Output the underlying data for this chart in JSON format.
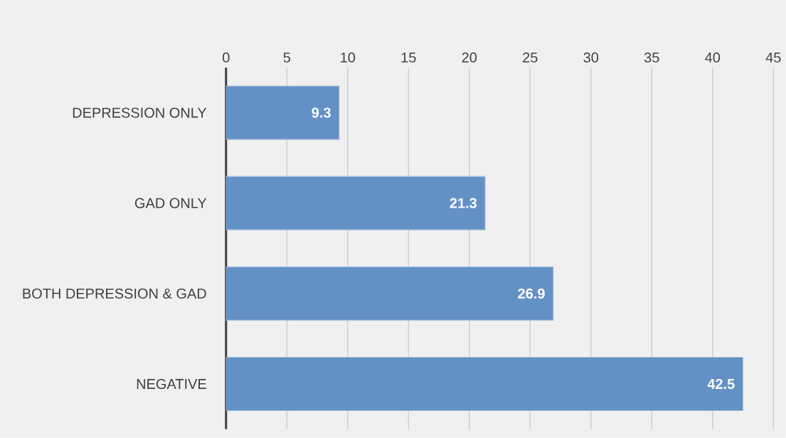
{
  "chart_data": {
    "type": "bar",
    "orientation": "horizontal",
    "categories": [
      "DEPRESSION ONLY",
      "GAD ONLY",
      "BOTH DEPRESSION & GAD",
      "NEGATIVE"
    ],
    "values": [
      9.3,
      21.3,
      26.9,
      42.5
    ],
    "color": "#6491c5",
    "xlim": [
      0,
      45
    ],
    "xticks": [
      0,
      5,
      10,
      15,
      20,
      25,
      30,
      35,
      40,
      45
    ],
    "grid": "x",
    "data_labels": true
  }
}
